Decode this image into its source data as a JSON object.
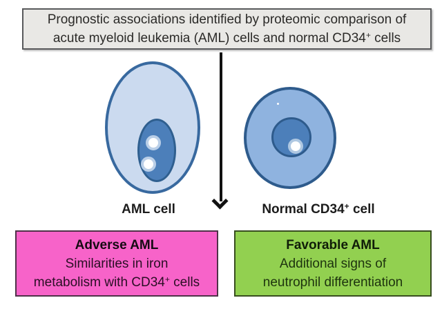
{
  "title": {
    "line1": "Prognostic associations identified by proteomic comparison of",
    "line2_pre": "acute myeloid leukemia (AML) cells and normal CD34",
    "line2_sup": "+",
    "line2_post": " cells"
  },
  "cell_labels": {
    "aml": "AML cell",
    "normal_pre": "Normal CD34",
    "normal_sup": "+",
    "normal_post": " cell"
  },
  "outcome_boxes": {
    "adverse": {
      "heading": "Adverse AML",
      "line1": "Similarities in iron",
      "line2_pre": "metabolism with CD34",
      "line2_sup": "+",
      "line2_post": " cells"
    },
    "favorable": {
      "heading": "Favorable AML",
      "line1": "Additional signs of",
      "line2": "neutrophil differentiation"
    }
  },
  "colors": {
    "title_box_bg": "#E9E8E5",
    "title_box_border": "#58595B",
    "adverse_bg": "#F763C9",
    "favorable_bg": "#92D050",
    "aml_cell_fill": "#CBDAEF",
    "normal_cell_fill": "#8FB3DF",
    "nucleus_fill": "#4C7FBA",
    "cell_outline": "#38699F",
    "arrow_color": "#111111"
  }
}
